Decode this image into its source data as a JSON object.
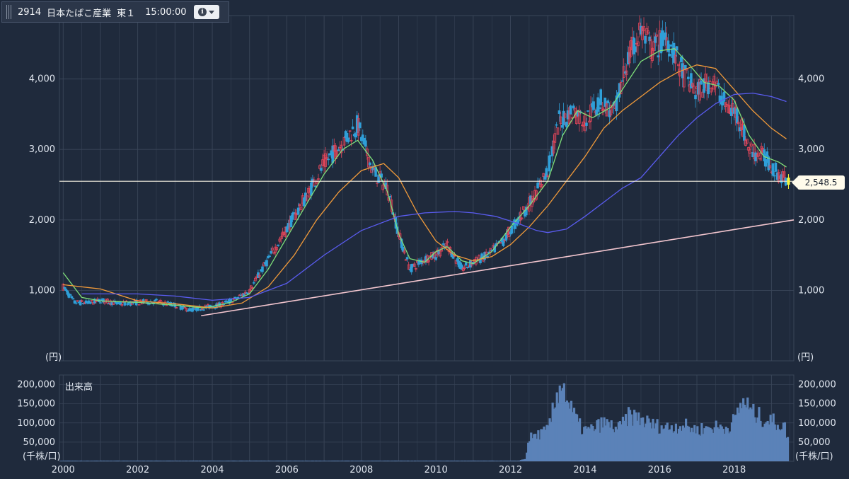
{
  "header": {
    "code": "2914",
    "name": "日本たばこ産業",
    "market": "東１",
    "time": "15:00:00",
    "info_icon": "info-icon",
    "menu_icon": "caret-down-icon"
  },
  "colors": {
    "background": "#1f2a3c",
    "grid": "#3a4659",
    "up_candle": "#e0465a",
    "down_candle": "#2f9fd8",
    "ma_short": "#7fe07a",
    "ma_mid": "#f09a3a",
    "ma_long": "#5a5cf0",
    "trendline": "#f3c6cf",
    "price_line": "#f4efe0",
    "volume": "#5b82b8",
    "marker": "#f5f53a"
  },
  "price_tag": "2,548.5",
  "volume_panel": {
    "title": "出来高",
    "unit": "(千株/口)"
  },
  "chart_data": {
    "type": "candlestick",
    "price_unit": "(円)",
    "y_ticks": [
      "1,000",
      "2,000",
      "3,000",
      "4,000"
    ],
    "y_tick_values": [
      1000,
      2000,
      3000,
      4000
    ],
    "ylim": [
      0,
      4900
    ],
    "x_ticks": [
      "2000",
      "2002",
      "2004",
      "2006",
      "2008",
      "2010",
      "2012",
      "2014",
      "2016",
      "2018"
    ],
    "x_tick_values": [
      2000,
      2002,
      2004,
      2006,
      2008,
      2010,
      2012,
      2014,
      2016,
      2018
    ],
    "xlim": [
      1999.9,
      2019.6
    ],
    "last_price": 2548.5,
    "close_path": [
      [
        2000.0,
        1050
      ],
      [
        2000.3,
        830
      ],
      [
        2000.7,
        820
      ],
      [
        2001.0,
        860
      ],
      [
        2001.5,
        810
      ],
      [
        2002.0,
        830
      ],
      [
        2002.5,
        840
      ],
      [
        2003.0,
        790
      ],
      [
        2003.4,
        720
      ],
      [
        2003.8,
        760
      ],
      [
        2004.2,
        790
      ],
      [
        2004.6,
        870
      ],
      [
        2005.0,
        1000
      ],
      [
        2005.4,
        1350
      ],
      [
        2005.8,
        1700
      ],
      [
        2006.2,
        2050
      ],
      [
        2006.6,
        2400
      ],
      [
        2007.0,
        2800
      ],
      [
        2007.5,
        3100
      ],
      [
        2007.9,
        3350
      ],
      [
        2008.3,
        2700
      ],
      [
        2008.7,
        2450
      ],
      [
        2009.0,
        1800
      ],
      [
        2009.3,
        1300
      ],
      [
        2009.7,
        1450
      ],
      [
        2010.0,
        1500
      ],
      [
        2010.3,
        1650
      ],
      [
        2010.7,
        1300
      ],
      [
        2011.0,
        1400
      ],
      [
        2011.4,
        1500
      ],
      [
        2011.8,
        1700
      ],
      [
        2012.2,
        2000
      ],
      [
        2012.6,
        2300
      ],
      [
        2013.0,
        2700
      ],
      [
        2013.3,
        3400
      ],
      [
        2013.7,
        3550
      ],
      [
        2014.0,
        3400
      ],
      [
        2014.4,
        3700
      ],
      [
        2014.8,
        3500
      ],
      [
        2015.1,
        4200
      ],
      [
        2015.5,
        4700
      ],
      [
        2015.8,
        4400
      ],
      [
        2016.2,
        4600
      ],
      [
        2016.6,
        4100
      ],
      [
        2017.0,
        3800
      ],
      [
        2017.4,
        4000
      ],
      [
        2017.8,
        3600
      ],
      [
        2018.1,
        3500
      ],
      [
        2018.4,
        3000
      ],
      [
        2018.8,
        2900
      ],
      [
        2019.1,
        2700
      ],
      [
        2019.4,
        2550
      ]
    ],
    "moving_averages": [
      {
        "key": "ma_short",
        "points": [
          [
            2000.0,
            1250
          ],
          [
            2000.5,
            900
          ],
          [
            2001.0,
            850
          ],
          [
            2002.0,
            830
          ],
          [
            2003.0,
            790
          ],
          [
            2003.8,
            750
          ],
          [
            2004.5,
            830
          ],
          [
            2005.0,
            950
          ],
          [
            2005.5,
            1300
          ],
          [
            2006.0,
            1750
          ],
          [
            2006.5,
            2200
          ],
          [
            2007.0,
            2650
          ],
          [
            2007.5,
            3000
          ],
          [
            2007.9,
            3130
          ],
          [
            2008.3,
            2850
          ],
          [
            2008.7,
            2400
          ],
          [
            2009.0,
            1800
          ],
          [
            2009.3,
            1450
          ],
          [
            2009.7,
            1400
          ],
          [
            2010.0,
            1550
          ],
          [
            2010.3,
            1620
          ],
          [
            2010.7,
            1420
          ],
          [
            2011.0,
            1380
          ],
          [
            2011.5,
            1550
          ],
          [
            2012.0,
            1900
          ],
          [
            2012.5,
            2200
          ],
          [
            2013.0,
            2550
          ],
          [
            2013.4,
            3200
          ],
          [
            2013.8,
            3550
          ],
          [
            2014.2,
            3450
          ],
          [
            2014.7,
            3600
          ],
          [
            2015.0,
            3850
          ],
          [
            2015.5,
            4250
          ],
          [
            2016.0,
            4400
          ],
          [
            2016.4,
            4430
          ],
          [
            2016.8,
            4200
          ],
          [
            2017.2,
            3950
          ],
          [
            2017.6,
            3900
          ],
          [
            2018.0,
            3700
          ],
          [
            2018.4,
            3200
          ],
          [
            2018.8,
            2900
          ],
          [
            2019.2,
            2820
          ],
          [
            2019.4,
            2750
          ]
        ]
      },
      {
        "key": "ma_mid",
        "points": [
          [
            2000.0,
            1080
          ],
          [
            2001.0,
            1020
          ],
          [
            2002.0,
            850
          ],
          [
            2003.0,
            810
          ],
          [
            2004.0,
            750
          ],
          [
            2004.8,
            820
          ],
          [
            2005.5,
            1050
          ],
          [
            2006.2,
            1500
          ],
          [
            2006.8,
            2000
          ],
          [
            2007.4,
            2400
          ],
          [
            2008.0,
            2700
          ],
          [
            2008.6,
            2800
          ],
          [
            2009.0,
            2600
          ],
          [
            2009.5,
            2100
          ],
          [
            2010.0,
            1700
          ],
          [
            2010.5,
            1500
          ],
          [
            2011.0,
            1420
          ],
          [
            2011.5,
            1480
          ],
          [
            2012.0,
            1650
          ],
          [
            2012.5,
            1900
          ],
          [
            2013.0,
            2200
          ],
          [
            2013.5,
            2550
          ],
          [
            2014.0,
            2900
          ],
          [
            2014.5,
            3300
          ],
          [
            2015.0,
            3550
          ],
          [
            2015.5,
            3750
          ],
          [
            2016.0,
            3950
          ],
          [
            2016.5,
            4100
          ],
          [
            2017.0,
            4200
          ],
          [
            2017.5,
            4150
          ],
          [
            2018.0,
            3850
          ],
          [
            2018.5,
            3550
          ],
          [
            2019.0,
            3300
          ],
          [
            2019.4,
            3150
          ]
        ]
      },
      {
        "key": "ma_long",
        "points": [
          [
            2000.5,
            950
          ],
          [
            2002.0,
            950
          ],
          [
            2003.0,
            920
          ],
          [
            2004.0,
            860
          ],
          [
            2005.0,
            900
          ],
          [
            2006.0,
            1100
          ],
          [
            2007.0,
            1500
          ],
          [
            2008.0,
            1850
          ],
          [
            2009.0,
            2050
          ],
          [
            2009.7,
            2100
          ],
          [
            2010.5,
            2120
          ],
          [
            2011.0,
            2100
          ],
          [
            2011.6,
            2050
          ],
          [
            2012.2,
            1950
          ],
          [
            2012.7,
            1850
          ],
          [
            2013.0,
            1820
          ],
          [
            2013.5,
            1870
          ],
          [
            2014.0,
            2050
          ],
          [
            2014.5,
            2250
          ],
          [
            2015.0,
            2450
          ],
          [
            2015.5,
            2600
          ],
          [
            2016.0,
            2900
          ],
          [
            2016.5,
            3200
          ],
          [
            2017.0,
            3450
          ],
          [
            2017.5,
            3650
          ],
          [
            2018.0,
            3780
          ],
          [
            2018.5,
            3800
          ],
          [
            2019.0,
            3750
          ],
          [
            2019.4,
            3680
          ]
        ]
      }
    ],
    "price_line": 2548.5,
    "trendline": [
      [
        2003.7,
        640
      ],
      [
        2019.6,
        2000
      ]
    ],
    "volume": {
      "y_ticks": [
        "50,000",
        "100,000",
        "150,000",
        "200,000"
      ],
      "y_tick_values": [
        50000,
        100000,
        150000,
        200000
      ],
      "ylim": [
        0,
        225000
      ],
      "profile": [
        [
          1999.9,
          1500
        ],
        [
          2012.2,
          1500
        ],
        [
          2012.4,
          6000
        ],
        [
          2012.5,
          60000
        ],
        [
          2012.8,
          72000
        ],
        [
          2013.0,
          80000
        ],
        [
          2013.2,
          150000
        ],
        [
          2013.35,
          215000
        ],
        [
          2013.6,
          140000
        ],
        [
          2013.9,
          85000
        ],
        [
          2014.1,
          80000
        ],
        [
          2014.5,
          100000
        ],
        [
          2014.9,
          85000
        ],
        [
          2015.2,
          120000
        ],
        [
          2015.5,
          110000
        ],
        [
          2015.8,
          95000
        ],
        [
          2016.2,
          88000
        ],
        [
          2016.6,
          95000
        ],
        [
          2017.0,
          82000
        ],
        [
          2017.4,
          90000
        ],
        [
          2017.8,
          88000
        ],
        [
          2018.0,
          105000
        ],
        [
          2018.25,
          160000
        ],
        [
          2018.5,
          125000
        ],
        [
          2018.8,
          110000
        ],
        [
          2019.0,
          105000
        ],
        [
          2019.2,
          98000
        ],
        [
          2019.35,
          90000
        ],
        [
          2019.45,
          60000
        ]
      ]
    }
  }
}
